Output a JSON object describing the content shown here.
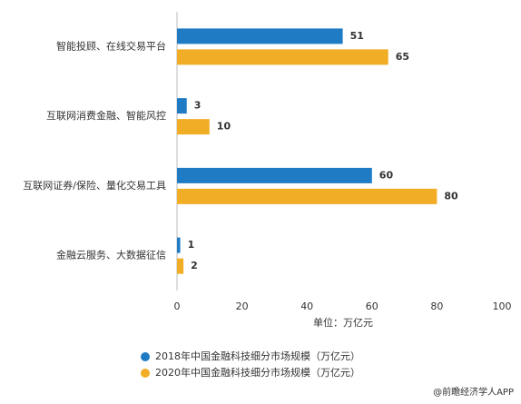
{
  "chart_data": {
    "type": "barh",
    "categories": [
      "智能投顾、在线交易平台",
      "互联网消费金融、智能风控",
      "互联网证券/保险、量化交易工具",
      "金融云服务、大数据征信"
    ],
    "series": [
      {
        "name": "2018年中国金融科技细分市场规模（万亿元）",
        "color": "#1f7bc4",
        "values": [
          51,
          3,
          60,
          1
        ]
      },
      {
        "name": "2020年中国金融科技细分市场规模（万亿元）",
        "color": "#f0ad25",
        "values": [
          65,
          10,
          80,
          2
        ]
      }
    ],
    "xlabel": "单位：万亿元",
    "xlim": [
      0,
      100
    ],
    "xticks": [
      0,
      20,
      40,
      60,
      80,
      100
    ],
    "grid": false,
    "source": "@前瞻经济学人APP"
  }
}
